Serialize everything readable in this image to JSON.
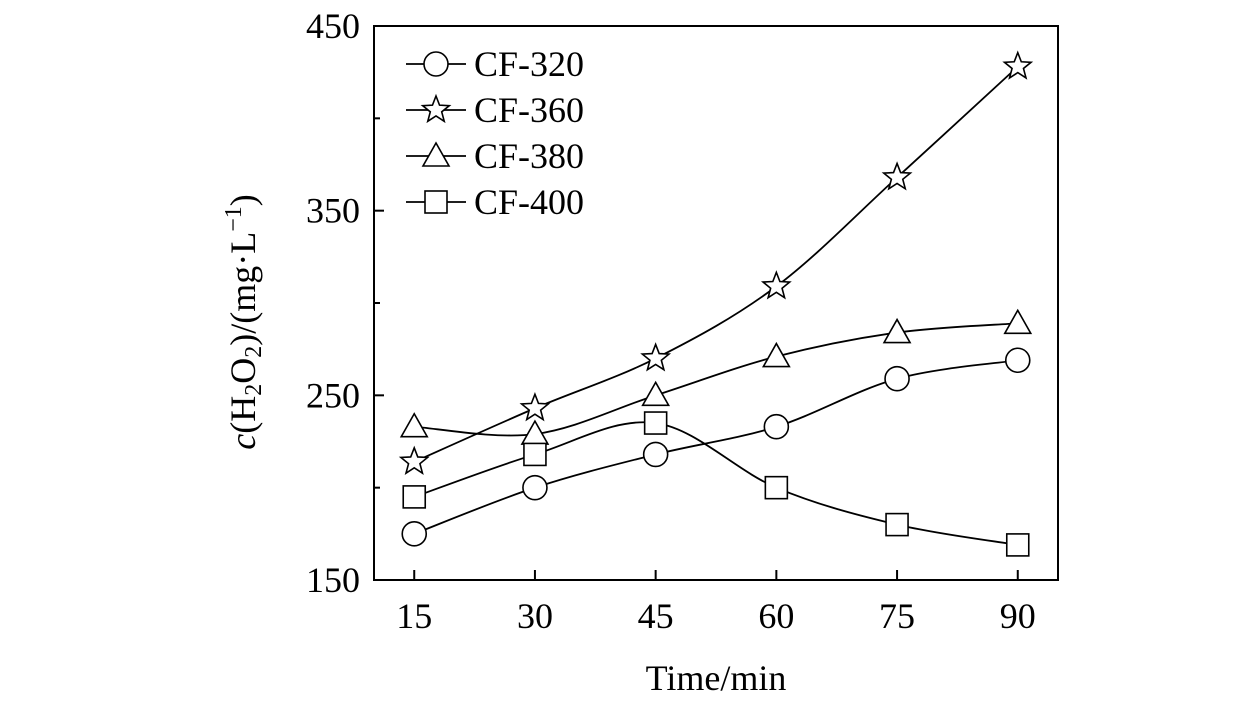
{
  "chart_data": {
    "type": "line",
    "xlabel": "Time/min",
    "ylabel": {
      "prefix": "c",
      "open": "(H",
      "sub1": "2",
      "mid": "O",
      "sub2": "2",
      "close": ")/(mg·L",
      "sup": "−1",
      "end": ")"
    },
    "x": [
      15,
      30,
      45,
      60,
      75,
      90
    ],
    "xlim": [
      10,
      95
    ],
    "ylim": [
      150,
      450
    ],
    "xticks": [
      "15",
      "30",
      "45",
      "60",
      "75",
      "90"
    ],
    "yticks": [
      "150",
      "250",
      "350",
      "450"
    ],
    "grid": false,
    "legend_position": "top-left",
    "series": [
      {
        "name": "CF-320",
        "marker": "circle",
        "values": [
          175,
          200,
          218,
          233,
          259,
          269
        ]
      },
      {
        "name": "CF-360",
        "marker": "star",
        "values": [
          214,
          243,
          270,
          309,
          368,
          428
        ]
      },
      {
        "name": "CF-380",
        "marker": "triangle",
        "values": [
          233,
          229,
          250,
          271,
          284,
          289
        ]
      },
      {
        "name": "CF-400",
        "marker": "square",
        "values": [
          195,
          218,
          235,
          200,
          180,
          169
        ]
      }
    ]
  }
}
